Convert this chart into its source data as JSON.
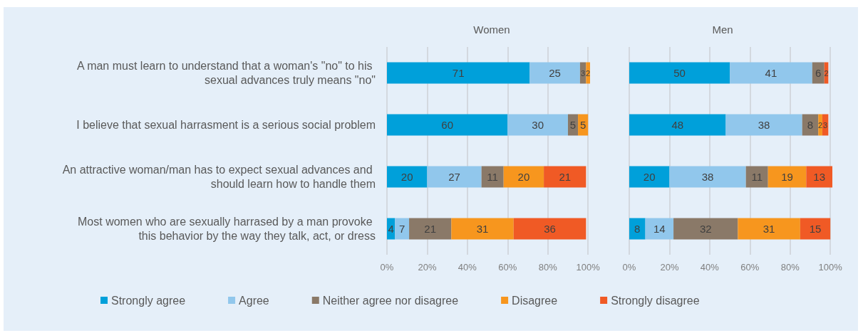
{
  "chart_data": [
    {
      "type": "bar",
      "orientation": "horizontal",
      "stacked": true,
      "title": "Women",
      "categories": [
        "A man must learn to understand that a woman's \"no\" to his sexual advances truly means \"no\"",
        "I believe that sexual harrasment is a serious social problem",
        "An attractive woman/man has to expect sexual advances and should learn how to handle them",
        "Most women who are sexually harrased by a man provoke this behavior by the way they talk, act, or dress"
      ],
      "series": [
        {
          "name": "Strongly agree",
          "color": "#00a0da",
          "values": [
            71,
            60,
            20,
            4
          ]
        },
        {
          "name": "Agree",
          "color": "#91c7ec",
          "values": [
            25,
            30,
            27,
            7
          ]
        },
        {
          "name": "Neither agree nor disagree",
          "color": "#8a7968",
          "values": [
            3,
            5,
            11,
            21
          ]
        },
        {
          "name": "Disagree",
          "color": "#f7961e",
          "values": [
            2,
            5,
            20,
            31
          ]
        },
        {
          "name": "Strongly disagree",
          "color": "#f05a25",
          "values": [
            null,
            null,
            21,
            36
          ]
        }
      ],
      "xlim": [
        0,
        101
      ],
      "xticks": [
        {
          "value": 0,
          "label": "0%"
        },
        {
          "value": 20,
          "label": "20%"
        },
        {
          "value": 40,
          "label": "40%"
        },
        {
          "value": 60,
          "label": "60%"
        },
        {
          "value": 80,
          "label": "80%"
        },
        {
          "value": 100,
          "label": "100%"
        }
      ],
      "grid": "x",
      "legend": "bottom",
      "data_labels": true
    },
    {
      "type": "bar",
      "orientation": "horizontal",
      "stacked": true,
      "title": "Men",
      "categories": [
        "A man must learn to understand that a woman's \"no\" to his sexual advances truly means \"no\"",
        "I believe that sexual harrasment is a serious social problem",
        "An attractive woman/man has to expect sexual advances and should learn how to handle them",
        "Most women who are sexually harrased by a man provoke this behavior by the way they talk, act, or dress"
      ],
      "series": [
        {
          "color": "#00a0da",
          "values": [
            50,
            48,
            20,
            8
          ]
        },
        {
          "color": "#91c7ec",
          "values": [
            41,
            38,
            38,
            14
          ]
        },
        {
          "color": "#8a7968",
          "values": [
            6,
            8,
            11,
            32
          ]
        },
        {
          "color": "#f7961e",
          "values": [
            null,
            2,
            19,
            31
          ]
        },
        {
          "color": "#f05a25",
          "values": [
            2,
            3,
            13,
            15
          ]
        }
      ],
      "xlim": [
        0,
        101
      ],
      "xticks": [
        {
          "value": 0,
          "label": "0%"
        },
        {
          "value": 20,
          "label": "20%"
        },
        {
          "value": 40,
          "label": "40%"
        },
        {
          "value": 60,
          "label": "60%"
        },
        {
          "value": 80,
          "label": "80%"
        },
        {
          "value": 100,
          "label": "100%"
        }
      ],
      "grid": "x",
      "tick_labels": "x",
      "data_labels": true
    }
  ]
}
